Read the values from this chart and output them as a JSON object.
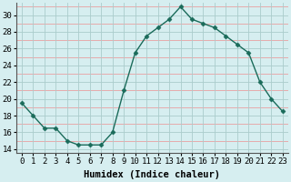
{
  "x": [
    0,
    1,
    2,
    3,
    4,
    5,
    6,
    7,
    8,
    9,
    10,
    11,
    12,
    13,
    14,
    15,
    16,
    17,
    18,
    19,
    20,
    21,
    22,
    23
  ],
  "y": [
    19.5,
    18.0,
    16.5,
    16.5,
    15.0,
    14.5,
    14.5,
    14.5,
    16.0,
    21.0,
    25.5,
    27.5,
    28.5,
    29.5,
    31.0,
    29.5,
    29.0,
    28.5,
    27.5,
    26.5,
    25.5,
    22.0,
    20.0,
    18.5
  ],
  "line_color": "#1a6b5a",
  "marker": "D",
  "marker_size": 2.5,
  "bg_color": "#d6eef0",
  "grid_color_major": "#aacccc",
  "grid_color_minor": "#e8a0a0",
  "xlabel": "Humidex (Indice chaleur)",
  "ylim": [
    13.5,
    31.5
  ],
  "xlim": [
    -0.5,
    23.5
  ],
  "yticks": [
    14,
    16,
    18,
    20,
    22,
    24,
    26,
    28,
    30
  ],
  "xticks": [
    0,
    1,
    2,
    3,
    4,
    5,
    6,
    7,
    8,
    9,
    10,
    11,
    12,
    13,
    14,
    15,
    16,
    17,
    18,
    19,
    20,
    21,
    22,
    23
  ],
  "xlabel_fontsize": 7.5,
  "tick_fontsize": 6.5,
  "linewidth": 1.0
}
